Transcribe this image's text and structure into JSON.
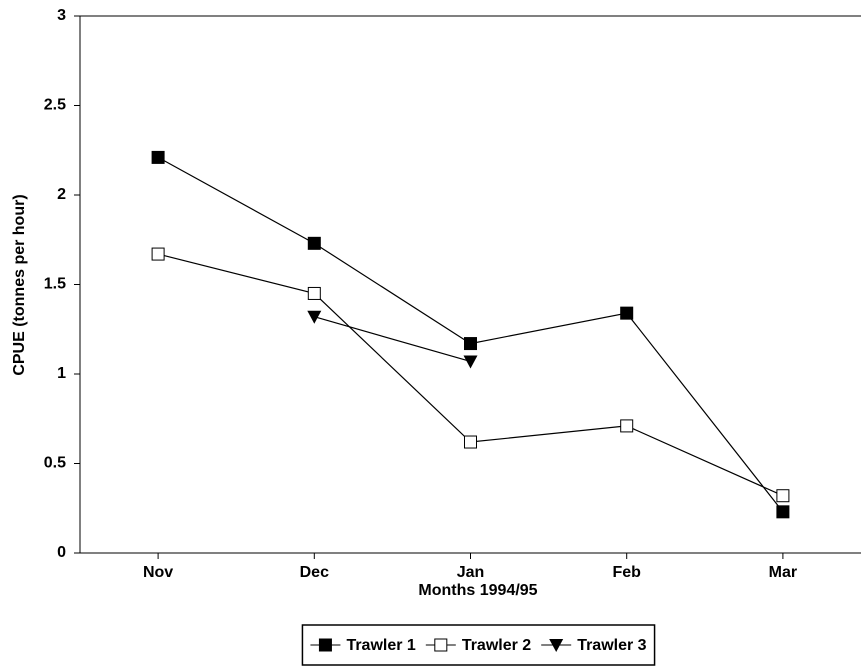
{
  "chart_data": {
    "type": "line",
    "x_label": "Months 1994/95",
    "y_label": "CPUE (tonnes per hour)",
    "categories": [
      "Nov",
      "Dec",
      "Jan",
      "Feb",
      "Mar"
    ],
    "series": [
      {
        "name": "Trawler 1",
        "color": "#000000",
        "marker": "square-filled",
        "values": [
          2.21,
          1.73,
          1.17,
          1.34,
          0.23
        ]
      },
      {
        "name": "Trawler 2",
        "color": "#000000",
        "marker": "square-open",
        "values": [
          1.67,
          1.45,
          0.62,
          0.71,
          0.32
        ]
      },
      {
        "name": "Trawler 3",
        "color": "#000000",
        "marker": "triangle-down-filled",
        "values": [
          null,
          1.32,
          1.07,
          null,
          null
        ]
      }
    ],
    "ylim": [
      0,
      3
    ],
    "yticks": [
      0,
      0.5,
      1,
      1.5,
      2,
      2.5,
      3
    ],
    "grid": false,
    "legend": "bottom"
  }
}
